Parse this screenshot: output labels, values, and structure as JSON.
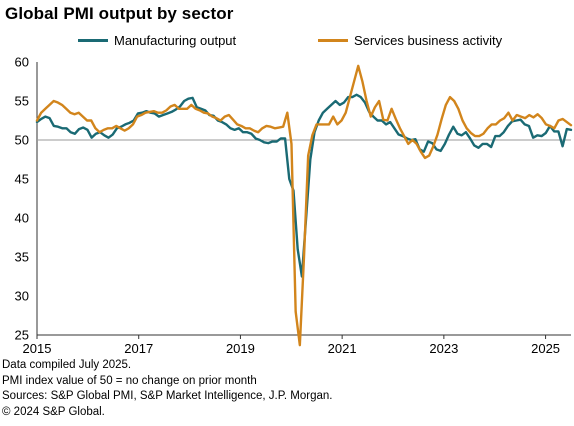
{
  "title": "Global PMI output by sector",
  "chart_data": {
    "type": "line",
    "title": "Global PMI output by sector",
    "xlabel": "",
    "ylabel": "",
    "x_start": "2015-01",
    "x_end": "2025-06",
    "xlim": [
      2015.0,
      2025.5
    ],
    "ylim": [
      25,
      60
    ],
    "y_ticks": [
      25,
      30,
      35,
      40,
      45,
      50,
      55,
      60
    ],
    "x_ticks": [
      {
        "label": "2015",
        "value": 2015
      },
      {
        "label": "2017",
        "value": 2017
      },
      {
        "label": "2019",
        "value": 2019
      },
      {
        "label": "2021",
        "value": 2021
      },
      {
        "label": "2023",
        "value": 2023
      },
      {
        "label": "2025",
        "value": 2025
      }
    ],
    "reference_line": 50,
    "grid": false,
    "legend_position": "top",
    "series": [
      {
        "name": "Manufacturing output",
        "color": "#1a6a74",
        "values": [
          52.3,
          52.7,
          53.0,
          52.8,
          51.8,
          51.7,
          51.5,
          51.5,
          51.0,
          50.8,
          51.4,
          51.6,
          51.3,
          50.3,
          50.8,
          51.0,
          50.6,
          50.3,
          50.7,
          51.5,
          51.7,
          52.0,
          52.2,
          52.5,
          53.4,
          53.5,
          53.7,
          53.5,
          53.4,
          53.0,
          53.2,
          53.4,
          53.6,
          53.9,
          54.3,
          55.0,
          55.3,
          55.4,
          54.2,
          54.0,
          53.8,
          53.2,
          53.1,
          52.5,
          52.3,
          52.0,
          51.5,
          51.3,
          51.5,
          51.0,
          51.0,
          50.8,
          50.2,
          50.0,
          49.7,
          49.6,
          49.8,
          49.8,
          50.2,
          50.2,
          45.0,
          43.5,
          36.0,
          32.5,
          40.0,
          47.5,
          51.0,
          52.5,
          53.5,
          54.0,
          54.5,
          55.0,
          54.5,
          54.8,
          55.5,
          55.5,
          55.8,
          55.5,
          54.8,
          53.6,
          53.0,
          52.5,
          52.5,
          52.0,
          52.3,
          51.5,
          50.7,
          50.5,
          50.2,
          50.0,
          50.1,
          48.8,
          48.5,
          49.8,
          49.6,
          48.8,
          48.6,
          49.5,
          50.7,
          51.7,
          50.8,
          50.6,
          51.0,
          50.2,
          49.3,
          49.0,
          49.5,
          49.5,
          49.1,
          50.5,
          50.5,
          51.0,
          51.8,
          52.4,
          52.5,
          52.6,
          52.0,
          51.8,
          50.3,
          50.6,
          50.5,
          50.9,
          51.8,
          51.1,
          51.1,
          49.2,
          51.4,
          51.3
        ]
      },
      {
        "name": "Services business activity",
        "color": "#d2851c",
        "values": [
          52.5,
          53.5,
          54.0,
          54.5,
          55.0,
          54.8,
          54.5,
          54.0,
          53.5,
          53.3,
          53.5,
          53.0,
          52.5,
          52.5,
          51.5,
          51.0,
          51.3,
          51.5,
          51.5,
          51.8,
          51.5,
          51.2,
          51.5,
          52.0,
          53.0,
          53.2,
          53.5,
          53.6,
          53.7,
          53.5,
          53.5,
          53.8,
          54.3,
          54.5,
          54.0,
          54.0,
          54.0,
          54.5,
          54.0,
          53.8,
          53.5,
          53.4,
          53.0,
          52.8,
          52.5,
          53.0,
          53.2,
          52.6,
          52.0,
          51.8,
          51.5,
          51.5,
          51.2,
          51.0,
          51.5,
          51.8,
          51.7,
          51.5,
          51.6,
          51.7,
          53.5,
          49.5,
          28.0,
          23.7,
          35.0,
          48.0,
          50.6,
          52.0,
          52.0,
          52.0,
          52.0,
          53.0,
          52.0,
          52.5,
          53.5,
          55.5,
          57.5,
          59.5,
          57.5,
          55.0,
          53.0,
          54.2,
          55.0,
          52.6,
          52.5,
          54.0,
          52.7,
          51.5,
          50.5,
          49.5,
          50.0,
          49.5,
          48.5,
          47.7,
          48.0,
          49.2,
          50.7,
          52.7,
          54.5,
          55.5,
          55.0,
          54.0,
          52.5,
          51.5,
          50.9,
          50.5,
          50.5,
          50.8,
          51.5,
          52.0,
          52.0,
          52.5,
          52.8,
          53.5,
          52.5,
          53.2,
          53.0,
          52.8,
          53.2,
          52.9,
          53.3,
          52.8,
          52.0,
          51.8,
          51.5,
          52.5,
          52.7,
          52.3,
          51.9
        ]
      }
    ]
  },
  "notes": [
    "Data compiled July 2025.",
    "PMI index value of 50 = no change on prior month",
    "Sources: S&P Global PMI, S&P Market Intelligence, J.P. Morgan.",
    "© 2024 S&P Global."
  ]
}
